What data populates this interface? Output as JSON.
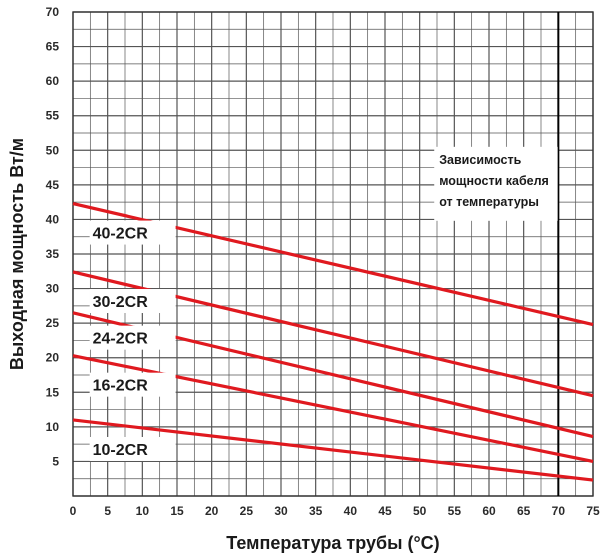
{
  "chart_data": {
    "type": "line",
    "xlabel": "Температура трубы (°C)",
    "ylabel": "Выходная мощность Вт/м",
    "xlim": [
      0,
      75
    ],
    "ylim": [
      0,
      70
    ],
    "x_ticks": [
      "0",
      "5",
      "10",
      "15",
      "20",
      "25",
      "30",
      "35",
      "40",
      "45",
      "50",
      "55",
      "60",
      "65",
      "70",
      "75"
    ],
    "y_ticks": [
      "5",
      "10",
      "15",
      "20",
      "25",
      "30",
      "35",
      "40",
      "45",
      "50",
      "55",
      "60",
      "65",
      "70"
    ],
    "grid": true,
    "reference_line_x": 70,
    "annotation": [
      "Зависимость",
      "мощности кабеля",
      "от температуры"
    ],
    "series": [
      {
        "name": "40-2CR",
        "x": [
          0,
          75
        ],
        "y": [
          42.3,
          24.8
        ]
      },
      {
        "name": "30-2CR",
        "x": [
          0,
          75
        ],
        "y": [
          32.4,
          14.5
        ]
      },
      {
        "name": "24-2CR",
        "x": [
          0,
          75
        ],
        "y": [
          26.5,
          8.6
        ]
      },
      {
        "name": "16-2CR",
        "x": [
          0,
          75
        ],
        "y": [
          20.3,
          5.0
        ]
      },
      {
        "name": "10-2CR",
        "x": [
          0,
          75
        ],
        "y": [
          11.0,
          2.3
        ]
      }
    ],
    "line_color": "#e0191f",
    "grid_color": "#555555"
  }
}
